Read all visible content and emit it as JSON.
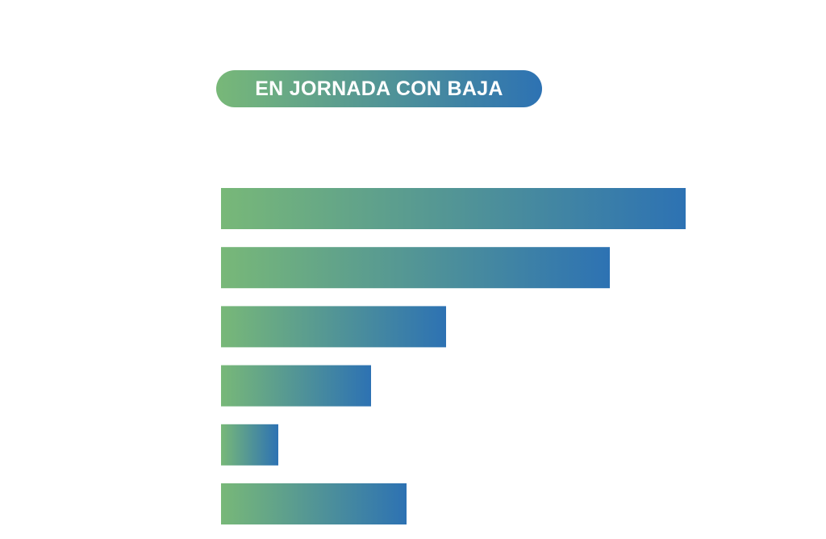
{
  "header": {
    "badge_label": "EN JORNADA CON BAJA"
  },
  "colors": {
    "gradient_start": "#78b878",
    "gradient_end": "#2d72b3"
  },
  "chart_data": {
    "type": "bar",
    "orientation": "horizontal",
    "title": "EN JORNADA CON BAJA",
    "categories": [
      "",
      "",
      "",
      "",
      "",
      ""
    ],
    "values": [
      576,
      482,
      279,
      186,
      71,
      230
    ],
    "xlim": [
      0,
      620
    ]
  }
}
